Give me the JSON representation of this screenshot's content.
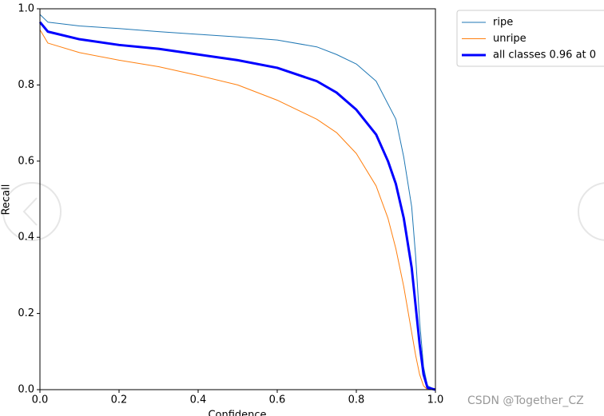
{
  "chart_data": {
    "type": "line",
    "xlabel": "Confidence",
    "ylabel": "Recall",
    "x": [
      0,
      0.02,
      0.1,
      0.2,
      0.3,
      0.4,
      0.5,
      0.6,
      0.7,
      0.75,
      0.8,
      0.85,
      0.88,
      0.9,
      0.92,
      0.94,
      0.95,
      0.96,
      0.97,
      0.98,
      1.0
    ],
    "series": [
      {
        "name": "ripe",
        "color": "#1f77b4",
        "width": 1,
        "values": [
          0.985,
          0.965,
          0.955,
          0.948,
          0.94,
          0.933,
          0.926,
          0.918,
          0.9,
          0.88,
          0.855,
          0.81,
          0.75,
          0.71,
          0.61,
          0.48,
          0.35,
          0.18,
          0.06,
          0.01,
          0
        ]
      },
      {
        "name": "unripe",
        "color": "#ff7f0e",
        "width": 1,
        "values": [
          0.945,
          0.91,
          0.885,
          0.865,
          0.848,
          0.825,
          0.8,
          0.76,
          0.71,
          0.675,
          0.62,
          0.535,
          0.45,
          0.37,
          0.27,
          0.15,
          0.09,
          0.04,
          0.01,
          0,
          0
        ]
      },
      {
        "name": "all classes 0.96 at 0",
        "color": "#0000ff",
        "width": 3,
        "values": [
          0.965,
          0.94,
          0.92,
          0.905,
          0.895,
          0.88,
          0.865,
          0.845,
          0.81,
          0.78,
          0.735,
          0.67,
          0.6,
          0.54,
          0.45,
          0.32,
          0.22,
          0.12,
          0.04,
          0.005,
          0
        ]
      }
    ],
    "xlim": [
      0,
      1
    ],
    "ylim": [
      0,
      1
    ],
    "xticks": [
      {
        "value": 0,
        "label": "0.0"
      },
      {
        "value": 0.2,
        "label": "0.2"
      },
      {
        "value": 0.4,
        "label": "0.4"
      },
      {
        "value": 0.6,
        "label": "0.6"
      },
      {
        "value": 0.8,
        "label": "0.8"
      },
      {
        "value": 1,
        "label": "1.0"
      }
    ],
    "yticks": [
      {
        "value": 0,
        "label": "0.0"
      },
      {
        "value": 0.2,
        "label": "0.2"
      },
      {
        "value": 0.4,
        "label": "0.4"
      },
      {
        "value": 0.6,
        "label": "0.6"
      },
      {
        "value": 0.8,
        "label": "0.8"
      },
      {
        "value": 1,
        "label": "1.0"
      }
    ],
    "grid": false,
    "legend": "outside upper right"
  },
  "watermark": "CSDN @Together_CZ"
}
